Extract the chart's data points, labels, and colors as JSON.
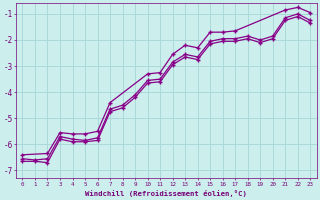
{
  "background_color": "#cceeed",
  "grid_color": "#aad8d8",
  "line_color": "#880088",
  "marker": "+",
  "xlabel": "Windchill (Refroidissement éolien,°C)",
  "xlim": [
    -0.5,
    23.5
  ],
  "ylim": [
    -7.3,
    -0.6
  ],
  "yticks": [
    -7,
    -6,
    -5,
    -4,
    -3,
    -2,
    -1
  ],
  "figsize": [
    3.2,
    2.0
  ],
  "dpi": 100,
  "series1_x": [
    0,
    1,
    2,
    3,
    4,
    5,
    6,
    7,
    8,
    9,
    10,
    11,
    12,
    13,
    14,
    15,
    16,
    17,
    18,
    19,
    20,
    21,
    22,
    23
  ],
  "series1_y": [
    -6.55,
    -6.6,
    -6.55,
    -5.7,
    -5.8,
    -5.85,
    -5.75,
    -4.65,
    -4.5,
    -4.1,
    -3.55,
    -3.5,
    -2.85,
    -2.55,
    -2.65,
    -2.05,
    -1.95,
    -1.95,
    -1.85,
    -2.0,
    -1.85,
    -1.15,
    -1.0,
    -1.25
  ],
  "series2_x": [
    0,
    1,
    2,
    3,
    4,
    5,
    6,
    7,
    8,
    9,
    10,
    11,
    12,
    13,
    14,
    15,
    16,
    17,
    18,
    19,
    20,
    21,
    22,
    23
  ],
  "series2_y": [
    -6.65,
    -6.65,
    -6.7,
    -5.8,
    -5.9,
    -5.9,
    -5.85,
    -4.75,
    -4.6,
    -4.2,
    -3.65,
    -3.6,
    -2.95,
    -2.65,
    -2.75,
    -2.15,
    -2.05,
    -2.05,
    -1.95,
    -2.1,
    -1.95,
    -1.25,
    -1.1,
    -1.35
  ],
  "series3_x": [
    0,
    2,
    3,
    4,
    5,
    6,
    7,
    10,
    11,
    12,
    13,
    14,
    15,
    16,
    17,
    21,
    22,
    23
  ],
  "series3_y": [
    -6.4,
    -6.35,
    -5.55,
    -5.6,
    -5.6,
    -5.5,
    -4.4,
    -3.3,
    -3.25,
    -2.55,
    -2.2,
    -2.3,
    -1.7,
    -1.7,
    -1.65,
    -0.85,
    -0.75,
    -0.95
  ]
}
